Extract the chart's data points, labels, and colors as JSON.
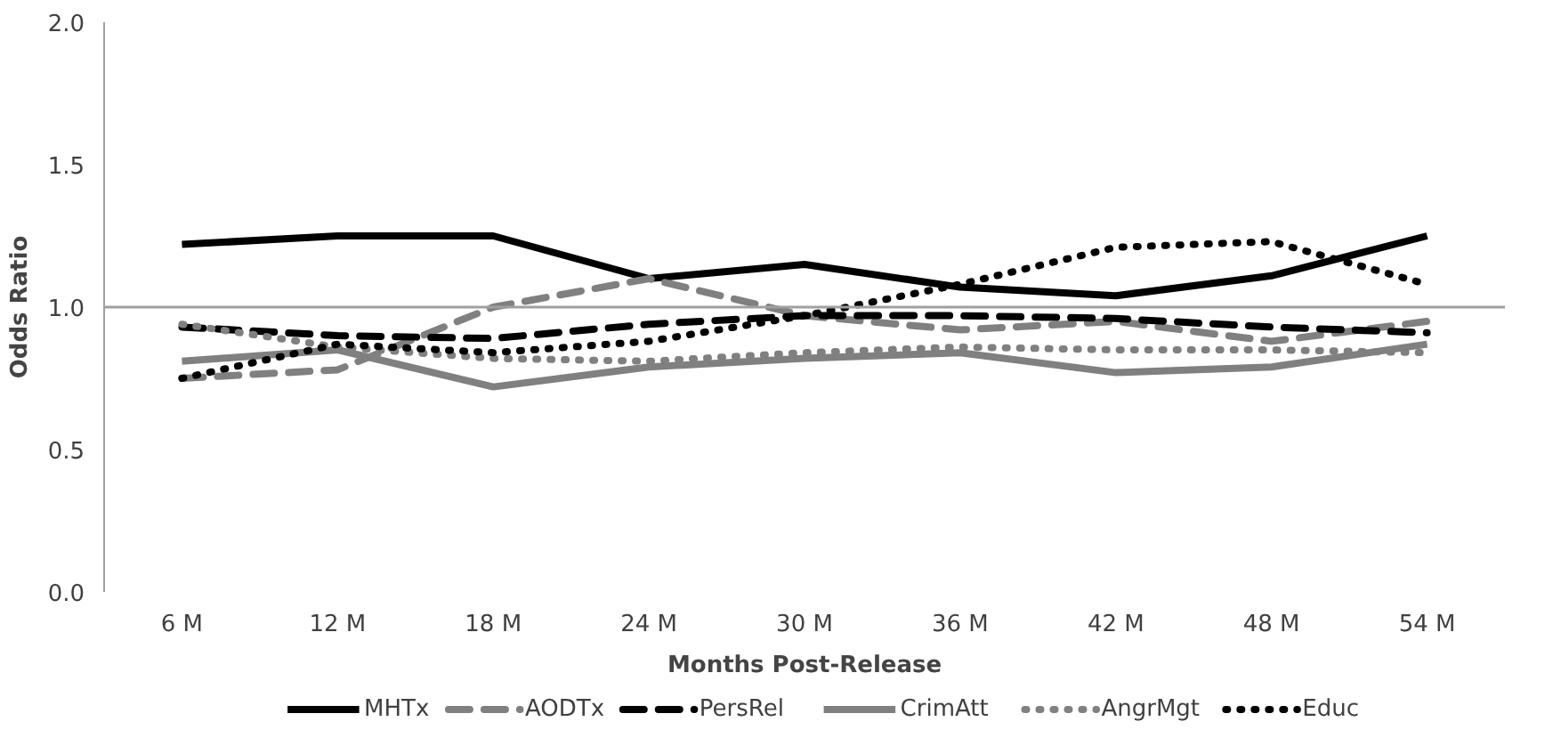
{
  "chart_data": {
    "type": "line",
    "xlabel": "Months Post-Release",
    "ylabel": "Odds Ratio",
    "categories": [
      "6 M",
      "12 M",
      "18 M",
      "24 M",
      "30 M",
      "36 M",
      "42 M",
      "48 M",
      "54 M"
    ],
    "series": [
      {
        "name": "MHTx",
        "color": "#000000",
        "line_style": "solid",
        "values": [
          1.22,
          1.25,
          1.25,
          1.1,
          1.15,
          1.07,
          1.04,
          1.11,
          1.25
        ]
      },
      {
        "name": "AODTx",
        "color": "#808080",
        "line_style": "dashed",
        "values": [
          0.75,
          0.78,
          1.0,
          1.1,
          0.97,
          0.92,
          0.95,
          0.88,
          0.95
        ]
      },
      {
        "name": "PersRel",
        "color": "#000000",
        "line_style": "dashed",
        "values": [
          0.93,
          0.9,
          0.89,
          0.94,
          0.97,
          0.97,
          0.96,
          0.93,
          0.91
        ]
      },
      {
        "name": "CrimAtt",
        "color": "#808080",
        "line_style": "solid",
        "values": [
          0.81,
          0.85,
          0.72,
          0.79,
          0.82,
          0.84,
          0.77,
          0.79,
          0.87
        ]
      },
      {
        "name": "AngrMgt",
        "color": "#808080",
        "line_style": "dotted",
        "values": [
          0.94,
          0.86,
          0.82,
          0.81,
          0.84,
          0.86,
          0.85,
          0.85,
          0.84
        ]
      },
      {
        "name": "Educ",
        "color": "#000000",
        "line_style": "dotted",
        "values": [
          0.75,
          0.87,
          0.84,
          0.88,
          0.97,
          1.08,
          1.21,
          1.23,
          1.08
        ]
      }
    ],
    "ylim": [
      0,
      2
    ],
    "yticks": [
      {
        "value": 0,
        "label": "0.0"
      },
      {
        "value": 0.5,
        "label": "0.5"
      },
      {
        "value": 1,
        "label": "1.0"
      },
      {
        "value": 1.5,
        "label": "1.5"
      },
      {
        "value": 2,
        "label": "2.0"
      }
    ],
    "ref_lines": [
      {
        "axis": "y",
        "value": 1.0,
        "color": "#a0a0a0"
      }
    ],
    "grid": false,
    "legend": "bottom",
    "marker": "none"
  }
}
